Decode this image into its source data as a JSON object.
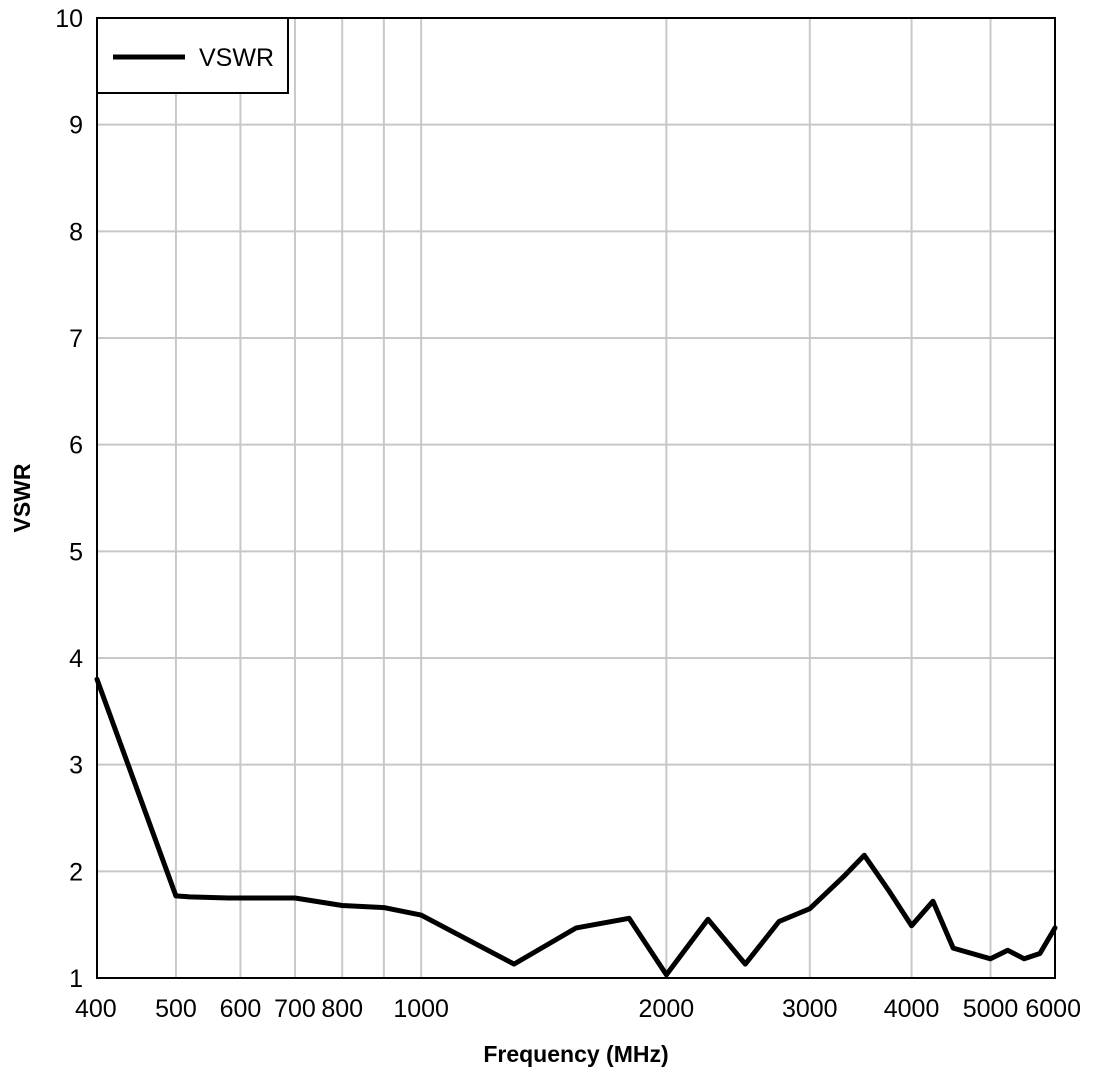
{
  "chart_data": {
    "type": "line",
    "xlabel": "Frequency (MHz)",
    "ylabel": "VSWR",
    "x_scale": "log",
    "xlim": [
      400,
      6000
    ],
    "ylim": [
      1,
      10
    ],
    "x_ticks": [
      400,
      500,
      600,
      700,
      800,
      1000,
      2000,
      3000,
      4000,
      5000,
      6000
    ],
    "y_ticks": [
      1,
      2,
      3,
      4,
      5,
      6,
      7,
      8,
      9,
      10
    ],
    "x_gridlines": [
      400,
      500,
      600,
      700,
      800,
      900,
      1000,
      2000,
      3000,
      4000,
      5000,
      6000
    ],
    "grid": true,
    "legend": "top-left",
    "series": [
      {
        "name": "VSWR",
        "color": "#000000",
        "x": [
          400,
          500,
          520,
          580,
          700,
          800,
          900,
          1000,
          1300,
          1550,
          1800,
          2000,
          2250,
          2500,
          2750,
          3000,
          3300,
          3500,
          3750,
          4000,
          4250,
          4500,
          5000,
          5250,
          5500,
          5750,
          6000
        ],
        "y": [
          3.8,
          1.77,
          1.76,
          1.75,
          1.75,
          1.68,
          1.66,
          1.59,
          1.13,
          1.47,
          1.56,
          1.03,
          1.55,
          1.13,
          1.53,
          1.65,
          1.95,
          2.15,
          1.82,
          1.49,
          1.72,
          1.28,
          1.18,
          1.26,
          1.18,
          1.23,
          1.47
        ]
      }
    ]
  }
}
